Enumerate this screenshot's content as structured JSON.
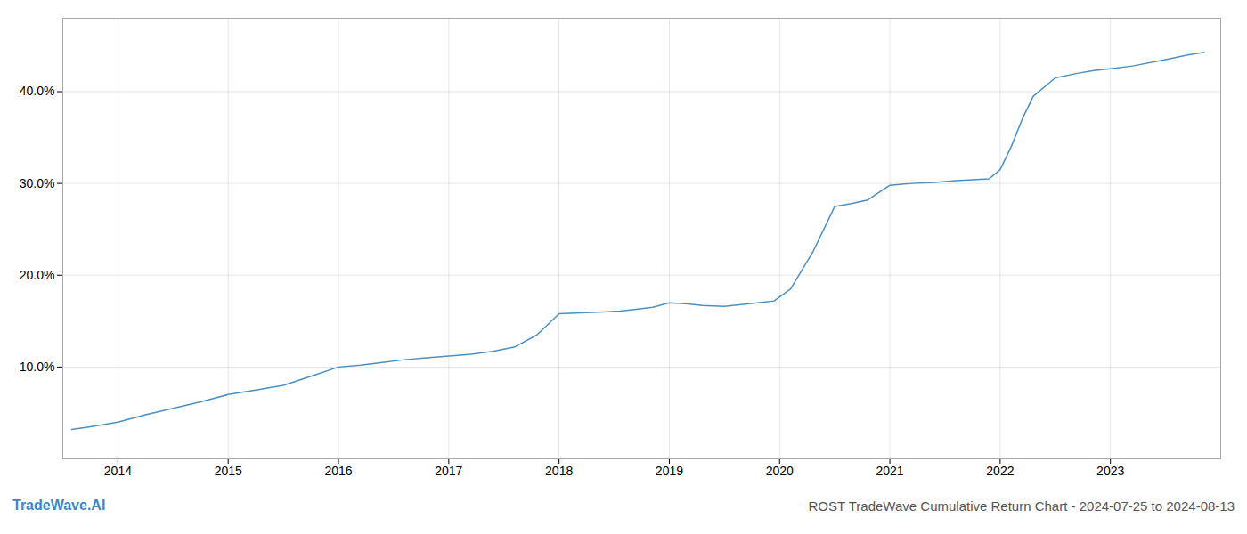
{
  "chart_data": {
    "type": "line",
    "title": "ROST TradeWave Cumulative Return Chart - 2024-07-25 to 2024-08-13",
    "annotations": [
      "TradeWave.AI"
    ],
    "color": "#4a90c4",
    "x": [
      2013.58,
      2013.75,
      2014.0,
      2014.25,
      2014.5,
      2014.75,
      2015.0,
      2015.25,
      2015.5,
      2015.75,
      2016.0,
      2016.2,
      2016.4,
      2016.6,
      2016.8,
      2017.0,
      2017.2,
      2017.4,
      2017.6,
      2017.8,
      2018.0,
      2018.2,
      2018.4,
      2018.55,
      2018.7,
      2018.85,
      2019.0,
      2019.15,
      2019.3,
      2019.5,
      2019.65,
      2019.8,
      2019.95,
      2020.1,
      2020.3,
      2020.5,
      2020.65,
      2020.8,
      2021.0,
      2021.2,
      2021.4,
      2021.6,
      2021.75,
      2021.9,
      2022.0,
      2022.1,
      2022.2,
      2022.3,
      2022.5,
      2022.7,
      2022.85,
      2023.0,
      2023.2,
      2023.5,
      2023.7,
      2023.85
    ],
    "values": [
      3.2,
      3.5,
      4.0,
      4.8,
      5.5,
      6.2,
      7.0,
      7.5,
      8.0,
      9.0,
      10.0,
      10.2,
      10.5,
      10.8,
      11.0,
      11.2,
      11.4,
      11.7,
      12.2,
      13.5,
      15.8,
      15.9,
      16.0,
      16.1,
      16.3,
      16.5,
      17.0,
      16.9,
      16.7,
      16.6,
      16.8,
      17.0,
      17.2,
      18.5,
      22.5,
      27.5,
      27.8,
      28.2,
      29.8,
      30.0,
      30.1,
      30.3,
      30.4,
      30.5,
      31.5,
      34.0,
      37.0,
      39.5,
      41.5,
      42.0,
      42.3,
      42.5,
      42.8,
      43.5,
      44.0,
      44.3
    ],
    "xlim": [
      2013.5,
      2024.0
    ],
    "ylim": [
      0,
      48
    ],
    "xticks": [
      2014,
      2015,
      2016,
      2017,
      2018,
      2019,
      2020,
      2021,
      2022,
      2023
    ],
    "yticks": [
      {
        "value": 10.0,
        "label": "10.0%"
      },
      {
        "value": 20.0,
        "label": "20.0%"
      },
      {
        "value": 30.0,
        "label": "30.0%"
      },
      {
        "value": 40.0,
        "label": "40.0%"
      }
    ],
    "grid": true
  }
}
